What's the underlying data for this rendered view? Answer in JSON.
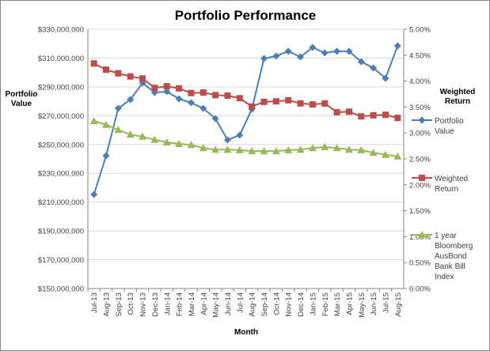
{
  "chart_data": {
    "type": "line",
    "title": "Portfolio Performance",
    "xlabel": "Month",
    "ylabel": "Portfolio Value",
    "y2label": "Weighted Return",
    "ylim": [
      150000000,
      330000000
    ],
    "y2lim": [
      0,
      5
    ],
    "y_ticks": [
      "$150,000,000",
      "$170,000,000",
      "$190,000,000",
      "$210,000,000",
      "$230,000,000",
      "$250,000,000",
      "$270,000,000",
      "$290,000,000",
      "$310,000,000",
      "$330,000,000"
    ],
    "y2_ticks": [
      "0.00%",
      "0.50%",
      "1.00%",
      "1.50%",
      "2.00%",
      "2.50%",
      "3.00%",
      "3.50%",
      "4.00%",
      "4.50%",
      "5.00%"
    ],
    "grid": true,
    "legend_placement": "right",
    "categories": [
      "Jul-13",
      "Aug-13",
      "Sep-13",
      "Oct-13",
      "Nov-13",
      "Dec-13",
      "Jan-14",
      "Feb-14",
      "Mar-14",
      "Apr-14",
      "May-14",
      "Jun-14",
      "Jul-14",
      "Aug-14",
      "Sep-14",
      "Oct-14",
      "Nov-14",
      "Dec-14",
      "Jan-15",
      "Feb-15",
      "Mar-15",
      "Apr-15",
      "May-15",
      "Jun-15",
      "Jul-15",
      "Aug-15"
    ],
    "series": [
      {
        "name": "Portfolio Value",
        "axis": "left",
        "color": "#4a7ebb",
        "marker": "diamond",
        "values": [
          215300000,
          242200000,
          275100000,
          281200000,
          292700000,
          286100000,
          286700000,
          281700000,
          279000000,
          275100000,
          268000000,
          253200000,
          256500000,
          274600000,
          309700000,
          311400000,
          314700000,
          310800000,
          317400000,
          313600000,
          314700000,
          314700000,
          307500000,
          303100000,
          296000000,
          318500000
        ]
      },
      {
        "name": "Weighted Return",
        "axis": "right",
        "color": "#be4b48",
        "marker": "square",
        "values": [
          4.34,
          4.22,
          4.15,
          4.09,
          4.05,
          3.87,
          3.9,
          3.86,
          3.77,
          3.78,
          3.73,
          3.72,
          3.67,
          3.51,
          3.6,
          3.61,
          3.63,
          3.57,
          3.55,
          3.57,
          3.4,
          3.41,
          3.32,
          3.34,
          3.35,
          3.29
        ]
      },
      {
        "name": "1 year Bloomberg AusBond Bank Bill Index",
        "axis": "right",
        "color": "#98b954",
        "marker": "triangle",
        "values": [
          3.23,
          3.16,
          3.06,
          2.97,
          2.93,
          2.87,
          2.82,
          2.79,
          2.77,
          2.71,
          2.68,
          2.68,
          2.67,
          2.65,
          2.65,
          2.65,
          2.67,
          2.68,
          2.71,
          2.73,
          2.71,
          2.68,
          2.67,
          2.62,
          2.58,
          2.55
        ]
      }
    ],
    "legend_lines": [
      [
        "Portfolio",
        "Value"
      ],
      [
        "Weighted",
        "Return"
      ],
      [
        "1 year",
        "Bloomberg",
        "AusBond",
        "Bank Bill",
        "Index"
      ]
    ],
    "ylabel_lines": [
      "Portfolio",
      "Value"
    ],
    "y2label_lines": [
      "Weighted",
      "Return"
    ]
  }
}
